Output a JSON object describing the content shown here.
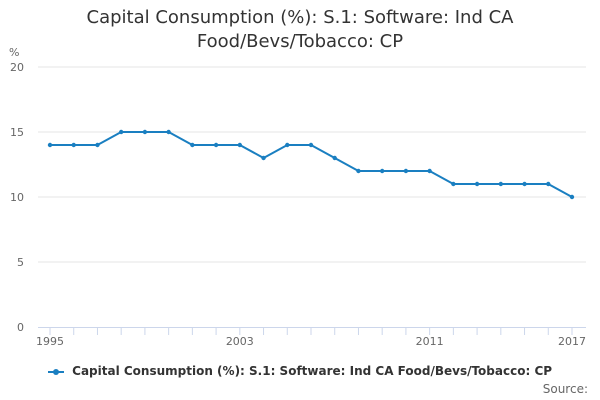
{
  "colors": {
    "series": "#1a7fc1",
    "grid": "#e6e6e6",
    "axis": "#ccd6eb",
    "text": "#666666"
  },
  "title": {
    "line1": "Capital Consumption (%): S.1: Software: Ind CA",
    "line2": "Food/Bevs/Tobacco: CP"
  },
  "source_label": "Source:",
  "chart_data": {
    "type": "line",
    "title": "Capital Consumption (%): S.1: Software: Ind CA Food/Bevs/Tobacco: CP",
    "ylabel": "%",
    "xlabel": "",
    "ylim": [
      0,
      20
    ],
    "yticks": [
      0,
      5,
      10,
      15,
      20
    ],
    "xlim": [
      1995,
      2017
    ],
    "xticks": [
      1995,
      2003,
      2011,
      2017
    ],
    "grid": true,
    "legend": "bottom",
    "series": [
      {
        "name": "Capital Consumption (%): S.1: Software: Ind CA Food/Bevs/Tobacco: CP",
        "x": [
          1995,
          1996,
          1997,
          1998,
          1999,
          2000,
          2001,
          2002,
          2003,
          2004,
          2005,
          2006,
          2007,
          2008,
          2009,
          2010,
          2011,
          2012,
          2013,
          2014,
          2015,
          2016,
          2017
        ],
        "values": [
          14,
          14,
          14,
          15,
          15,
          15,
          14,
          14,
          14,
          13,
          14,
          14,
          13,
          12,
          12,
          12,
          12,
          11,
          11,
          11,
          11,
          11,
          10
        ]
      }
    ]
  }
}
